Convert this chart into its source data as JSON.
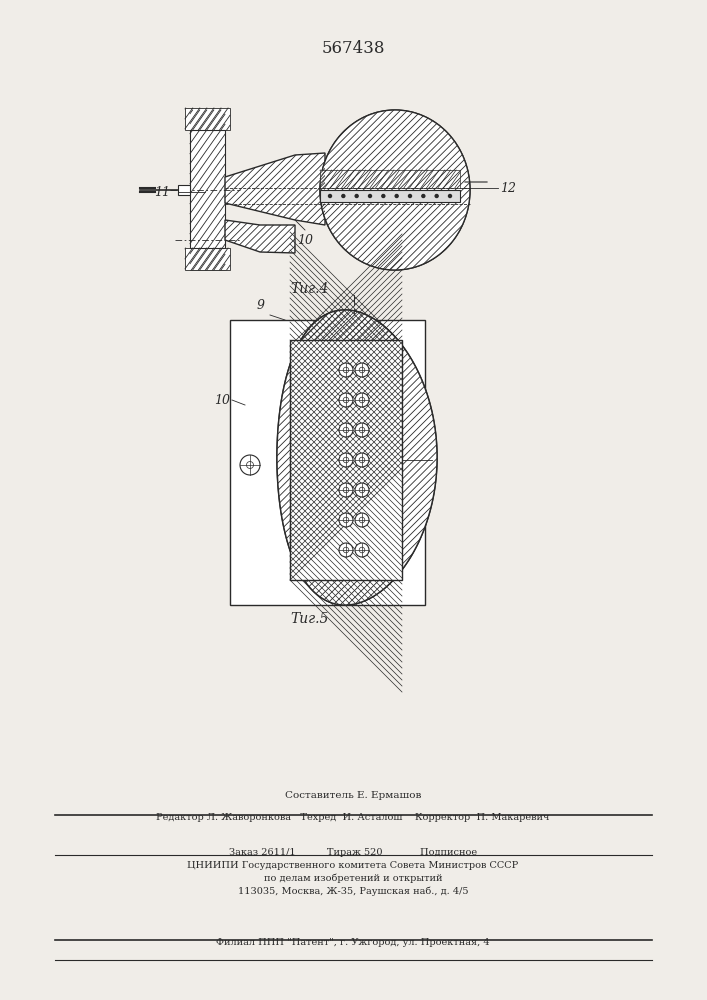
{
  "patent_number": "567438",
  "fig4_label": "Τиг.4",
  "fig5_label": "Τиг.5",
  "label_11": "11",
  "label_10": "10",
  "label_12": "12",
  "label_9": "9",
  "label_10b": "10",
  "footer_line1": "Составитель Е. Ермашов",
  "footer_line2": "Редактор Л. Жаворонкова   Техред  И. Асталош    Корректор  П. Макаревич",
  "footer_line3": "Заказ 2611/1          Тираж 520            Подписное",
  "footer_line4": "ЦНИИПИ Государственного комитета Совета Министров СССР",
  "footer_line5": "по делам изобретений и открытий",
  "footer_line6": "113035, Москва, Ж-35, Раушская наб., д. 4/5",
  "footer_line7": "Филиал ППП \"Патент\", г. Ужгород, ул. Проектная, 4",
  "line_color": "#2a2a2a",
  "hatch_color": "#2a2a2a",
  "bg_color": "#f0ede8"
}
